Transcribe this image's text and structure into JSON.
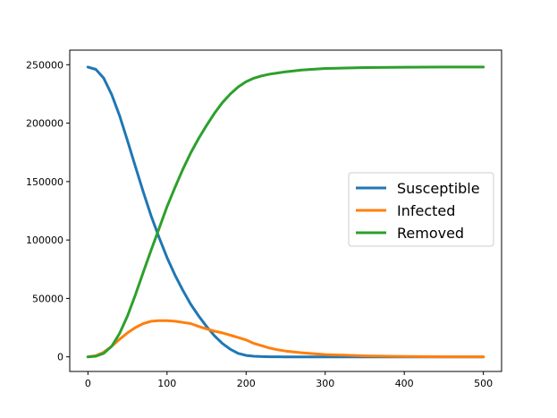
{
  "chart_data": {
    "type": "line",
    "title": "",
    "xlabel": "",
    "ylabel": "",
    "xlim": [
      -23,
      523
    ],
    "ylim": [
      -12500,
      262500
    ],
    "xticks": [
      0,
      100,
      200,
      300,
      400,
      500
    ],
    "yticks": [
      0,
      50000,
      100000,
      150000,
      200000,
      250000
    ],
    "grid": false,
    "legend_position": "center-right",
    "series": [
      {
        "name": "Susceptible",
        "color": "#1f77b4",
        "x": [
          0,
          10,
          20,
          30,
          40,
          50,
          60,
          70,
          80,
          90,
          100,
          110,
          120,
          130,
          140,
          150,
          160,
          170,
          180,
          190,
          200,
          210,
          220,
          230,
          240,
          250,
          300,
          350,
          400,
          450,
          500
        ],
        "y": [
          248000,
          246000,
          238500,
          224500,
          206500,
          185000,
          163000,
          141000,
          120500,
          102000,
          85000,
          70000,
          57000,
          45000,
          35000,
          26000,
          18000,
          11500,
          6500,
          3000,
          1200,
          500,
          200,
          100,
          50,
          0,
          0,
          0,
          0,
          0,
          0
        ]
      },
      {
        "name": "Infected",
        "color": "#ff7f0e",
        "x": [
          0,
          10,
          20,
          30,
          40,
          50,
          60,
          70,
          80,
          90,
          100,
          110,
          120,
          130,
          140,
          150,
          160,
          170,
          180,
          190,
          200,
          210,
          220,
          230,
          240,
          250,
          270,
          300,
          350,
          400,
          450,
          500
        ],
        "y": [
          0,
          1000,
          4000,
          9000,
          15000,
          20500,
          25000,
          28500,
          30500,
          31000,
          31000,
          30500,
          29500,
          28500,
          26000,
          24000,
          22000,
          20500,
          18500,
          16500,
          14500,
          11500,
          9500,
          7500,
          6000,
          5000,
          3500,
          2000,
          800,
          300,
          100,
          50
        ]
      },
      {
        "name": "Removed",
        "color": "#2ca02c",
        "x": [
          0,
          10,
          20,
          30,
          40,
          50,
          60,
          70,
          80,
          90,
          100,
          110,
          120,
          130,
          140,
          150,
          160,
          170,
          180,
          190,
          200,
          210,
          220,
          230,
          240,
          250,
          270,
          300,
          350,
          400,
          450,
          500
        ],
        "y": [
          0,
          500,
          3000,
          9000,
          20000,
          35000,
          53000,
          72500,
          91500,
          110000,
          128500,
          145000,
          160500,
          174500,
          187000,
          198000,
          208500,
          217500,
          225000,
          231000,
          235500,
          238500,
          240500,
          242000,
          243000,
          244000,
          245500,
          246800,
          247600,
          247900,
          248000,
          248000
        ]
      }
    ]
  }
}
